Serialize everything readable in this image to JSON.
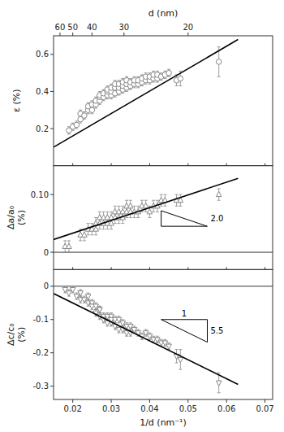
{
  "chart_data": [
    {
      "type": "scatter",
      "marker": "circle",
      "color": "#888888",
      "y_label": "ε (%)",
      "x2_label": "d (nm)",
      "x2ticks": [
        {
          "value": 0.01667,
          "label": "60"
        },
        {
          "value": 0.02,
          "label": "50"
        },
        {
          "value": 0.025,
          "label": "40"
        },
        {
          "value": 0.03333,
          "label": "30"
        },
        {
          "value": 0.05,
          "label": "20"
        }
      ],
      "xlim": [
        0.015,
        0.072
      ],
      "xticks": [
        0.02,
        0.03,
        0.04,
        0.05,
        0.06,
        0.07
      ],
      "ylim": [
        0,
        0.7
      ],
      "yticks": [
        0.2,
        0.4,
        0.6
      ],
      "tick_labels": "y",
      "x": [
        0.019,
        0.02,
        0.021,
        0.022,
        0.022,
        0.023,
        0.024,
        0.024,
        0.025,
        0.025,
        0.026,
        0.026,
        0.027,
        0.027,
        0.027,
        0.028,
        0.028,
        0.029,
        0.029,
        0.029,
        0.03,
        0.03,
        0.03,
        0.031,
        0.031,
        0.031,
        0.032,
        0.032,
        0.032,
        0.033,
        0.033,
        0.033,
        0.034,
        0.034,
        0.034,
        0.035,
        0.035,
        0.036,
        0.036,
        0.037,
        0.037,
        0.038,
        0.038,
        0.039,
        0.039,
        0.04,
        0.04,
        0.041,
        0.041,
        0.042,
        0.042,
        0.043,
        0.044,
        0.045,
        0.047,
        0.048,
        0.058
      ],
      "values": [
        0.19,
        0.21,
        0.22,
        0.25,
        0.28,
        0.27,
        0.3,
        0.32,
        0.3,
        0.33,
        0.33,
        0.35,
        0.35,
        0.37,
        0.38,
        0.37,
        0.39,
        0.38,
        0.4,
        0.41,
        0.38,
        0.4,
        0.42,
        0.39,
        0.42,
        0.44,
        0.4,
        0.42,
        0.44,
        0.41,
        0.43,
        0.45,
        0.42,
        0.44,
        0.46,
        0.43,
        0.45,
        0.44,
        0.46,
        0.44,
        0.46,
        0.45,
        0.47,
        0.46,
        0.48,
        0.46,
        0.48,
        0.47,
        0.49,
        0.47,
        0.49,
        0.48,
        0.49,
        0.5,
        0.46,
        0.47,
        0.56
      ],
      "errors": [
        0.02,
        0.02,
        0.02,
        0.02,
        0.02,
        0.02,
        0.02,
        0.02,
        0.02,
        0.02,
        0.02,
        0.02,
        0.02,
        0.02,
        0.02,
        0.02,
        0.02,
        0.02,
        0.02,
        0.02,
        0.02,
        0.02,
        0.02,
        0.02,
        0.02,
        0.02,
        0.02,
        0.02,
        0.02,
        0.02,
        0.02,
        0.02,
        0.02,
        0.02,
        0.02,
        0.02,
        0.02,
        0.02,
        0.02,
        0.02,
        0.02,
        0.02,
        0.02,
        0.02,
        0.02,
        0.02,
        0.02,
        0.02,
        0.02,
        0.02,
        0.02,
        0.02,
        0.02,
        0.02,
        0.03,
        0.04,
        0.08
      ],
      "fit_line": {
        "x": [
          0.015,
          0.063
        ],
        "values": [
          0.1,
          0.68
        ],
        "color": "#000000"
      }
    },
    {
      "type": "scatter",
      "marker": "triangle-up",
      "color": "#888888",
      "y_label": "Δa/a₀\n(%)",
      "xlim": [
        0.015,
        0.072
      ],
      "xticks": [
        0.02,
        0.03,
        0.04,
        0.05,
        0.06,
        0.07
      ],
      "ylim": [
        -0.03,
        0.15
      ],
      "yticks": [
        0,
        {
          "value": 0.1,
          "label": "0.10"
        }
      ],
      "tick_labels": "y",
      "reference_lines": [
        0
      ],
      "x": [
        0.018,
        0.019,
        0.022,
        0.023,
        0.024,
        0.025,
        0.026,
        0.026,
        0.027,
        0.027,
        0.028,
        0.028,
        0.029,
        0.029,
        0.03,
        0.03,
        0.031,
        0.031,
        0.032,
        0.032,
        0.033,
        0.033,
        0.034,
        0.034,
        0.035,
        0.035,
        0.036,
        0.037,
        0.038,
        0.039,
        0.04,
        0.041,
        0.042,
        0.043,
        0.044,
        0.047,
        0.048,
        0.058
      ],
      "values": [
        0.01,
        0.01,
        0.03,
        0.03,
        0.04,
        0.04,
        0.04,
        0.05,
        0.05,
        0.06,
        0.05,
        0.06,
        0.05,
        0.06,
        0.05,
        0.06,
        0.06,
        0.07,
        0.06,
        0.07,
        0.06,
        0.07,
        0.07,
        0.08,
        0.07,
        0.08,
        0.07,
        0.07,
        0.08,
        0.08,
        0.07,
        0.08,
        0.08,
        0.09,
        0.09,
        0.09,
        0.09,
        0.1
      ],
      "errors": [
        0.01,
        0.01,
        0.01,
        0.01,
        0.01,
        0.01,
        0.01,
        0.01,
        0.01,
        0.01,
        0.01,
        0.01,
        0.01,
        0.01,
        0.01,
        0.01,
        0.01,
        0.01,
        0.01,
        0.01,
        0.01,
        0.01,
        0.01,
        0.01,
        0.01,
        0.01,
        0.01,
        0.01,
        0.01,
        0.01,
        0.01,
        0.01,
        0.01,
        0.01,
        0.01,
        0.01,
        0.01,
        0.01
      ],
      "fit_line": {
        "x": [
          0.015,
          0.063
        ],
        "values": [
          0.022,
          0.128
        ],
        "color": "#000000"
      },
      "slope_triangle": {
        "x": [
          0.043,
          0.055,
          0.043
        ],
        "y": [
          0.045,
          0.045,
          0.072
        ],
        "label_vertical": "2.0"
      }
    },
    {
      "type": "scatter",
      "marker": "triangle-down",
      "color": "#888888",
      "y_label": "Δc/c₀\n(%)",
      "x_label": "1/d (nm⁻¹)",
      "xlim": [
        0.015,
        0.072
      ],
      "xticks": [
        0.02,
        0.03,
        0.04,
        0.05,
        0.06,
        0.07
      ],
      "ylim": [
        -0.34,
        0.05
      ],
      "yticks": [
        -0.3,
        -0.2,
        -0.1,
        0
      ],
      "reference_lines": [
        0
      ],
      "x": [
        0.018,
        0.019,
        0.02,
        0.021,
        0.022,
        0.022,
        0.023,
        0.024,
        0.024,
        0.025,
        0.025,
        0.026,
        0.026,
        0.027,
        0.027,
        0.027,
        0.028,
        0.028,
        0.029,
        0.029,
        0.03,
        0.03,
        0.03,
        0.031,
        0.031,
        0.032,
        0.032,
        0.033,
        0.033,
        0.034,
        0.034,
        0.035,
        0.035,
        0.036,
        0.037,
        0.038,
        0.039,
        0.04,
        0.041,
        0.042,
        0.043,
        0.044,
        0.045,
        0.047,
        0.048,
        0.058
      ],
      "values": [
        -0.01,
        -0.02,
        -0.01,
        -0.03,
        -0.04,
        -0.02,
        -0.04,
        -0.05,
        -0.03,
        -0.05,
        -0.06,
        -0.06,
        -0.08,
        -0.07,
        -0.09,
        -0.07,
        -0.09,
        -0.1,
        -0.09,
        -0.11,
        -0.09,
        -0.11,
        -0.1,
        -0.1,
        -0.12,
        -0.1,
        -0.13,
        -0.11,
        -0.13,
        -0.12,
        -0.14,
        -0.12,
        -0.14,
        -0.13,
        -0.14,
        -0.15,
        -0.14,
        -0.15,
        -0.16,
        -0.16,
        -0.17,
        -0.17,
        -0.18,
        -0.21,
        -0.22,
        -0.29
      ],
      "errors": [
        0.01,
        0.01,
        0.01,
        0.01,
        0.01,
        0.01,
        0.01,
        0.01,
        0.01,
        0.01,
        0.01,
        0.01,
        0.01,
        0.01,
        0.01,
        0.01,
        0.01,
        0.01,
        0.01,
        0.01,
        0.01,
        0.01,
        0.01,
        0.01,
        0.01,
        0.01,
        0.01,
        0.01,
        0.01,
        0.01,
        0.01,
        0.01,
        0.01,
        0.01,
        0.01,
        0.01,
        0.01,
        0.01,
        0.01,
        0.01,
        0.01,
        0.01,
        0.01,
        0.02,
        0.03,
        0.03
      ],
      "fit_line": {
        "x": [
          0.015,
          0.063
        ],
        "values": [
          -0.022,
          -0.295
        ],
        "color": "#000000"
      },
      "slope_triangle": {
        "x": [
          0.043,
          0.055,
          0.055
        ],
        "y": [
          -0.1,
          -0.1,
          -0.168
        ],
        "label_horizontal": "1",
        "label_vertical": "5.5"
      }
    }
  ]
}
